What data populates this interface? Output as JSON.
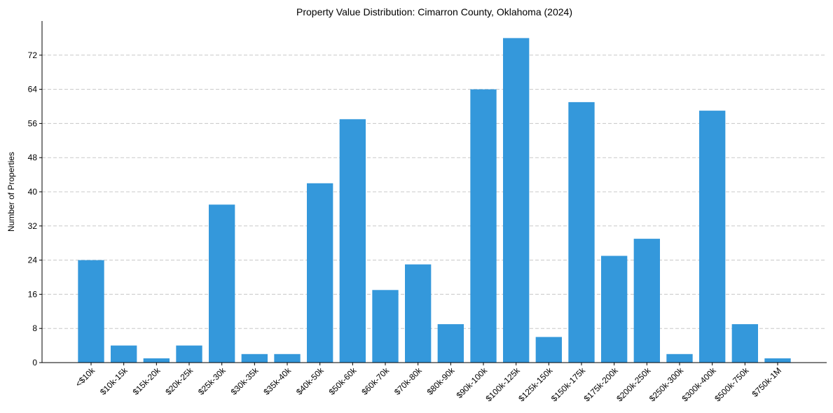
{
  "chart_data": {
    "type": "bar",
    "title": "Property Value Distribution: Cimarron County, Oklahoma (2024)",
    "xlabel": "",
    "ylabel": "Number of Properties",
    "categories": [
      "<$10k",
      "$10k-15k",
      "$15k-20k",
      "$20k-25k",
      "$25k-30k",
      "$30k-35k",
      "$35k-40k",
      "$40k-50k",
      "$50k-60k",
      "$60k-70k",
      "$70k-80k",
      "$80k-90k",
      "$90k-100k",
      "$100k-125k",
      "$125k-150k",
      "$150k-175k",
      "$175k-200k",
      "$200k-250k",
      "$250k-300k",
      "$300k-400k",
      "$500k-750k",
      "$750k-1M"
    ],
    "values": [
      24,
      4,
      1,
      4,
      37,
      2,
      2,
      42,
      57,
      17,
      23,
      9,
      64,
      76,
      6,
      61,
      25,
      29,
      2,
      59,
      9,
      1
    ],
    "ylim": [
      0,
      80
    ],
    "yticks": [
      0,
      8,
      16,
      24,
      32,
      40,
      48,
      56,
      64,
      72
    ],
    "grid": true,
    "bar_color": "#3498db"
  }
}
